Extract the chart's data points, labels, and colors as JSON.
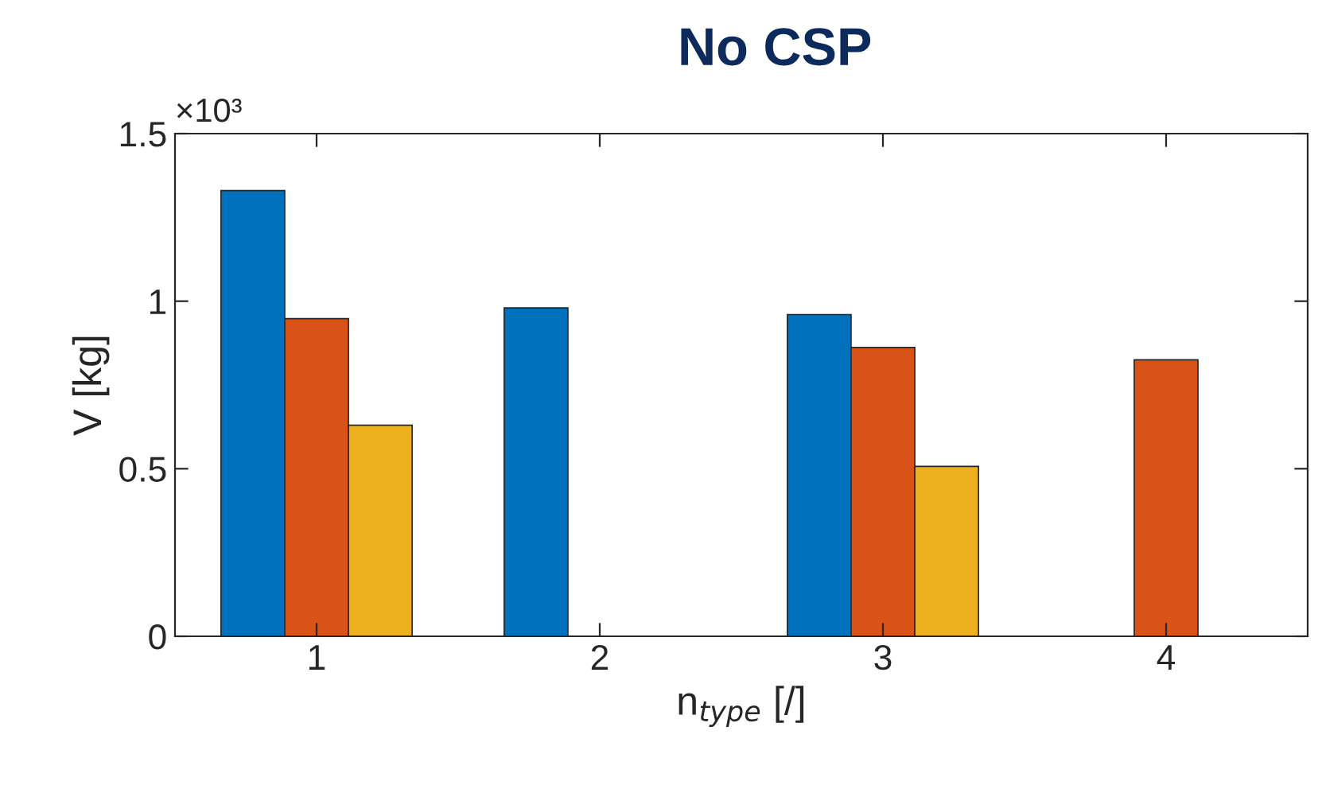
{
  "chart_data": {
    "type": "bar",
    "title": "No CSP",
    "xlabel": "n$_{type}$ [/]",
    "ylabel": "V [kg]",
    "categories": [
      "1",
      "2",
      "3",
      "4"
    ],
    "series": [
      {
        "color": "#0072bd",
        "values": [
          1.33,
          0.98,
          0.96,
          null
        ]
      },
      {
        "color": "#d95319",
        "values": [
          0.948,
          null,
          0.862,
          0.825
        ]
      },
      {
        "color": "#edb120",
        "values": [
          0.63,
          null,
          0.507,
          null
        ]
      }
    ],
    "ylim": [
      0,
      1.5
    ],
    "yticks": [
      0,
      0.5,
      1,
      1.5
    ],
    "annotations": [
      "×10³"
    ],
    "grid": false,
    "legend": false
  }
}
